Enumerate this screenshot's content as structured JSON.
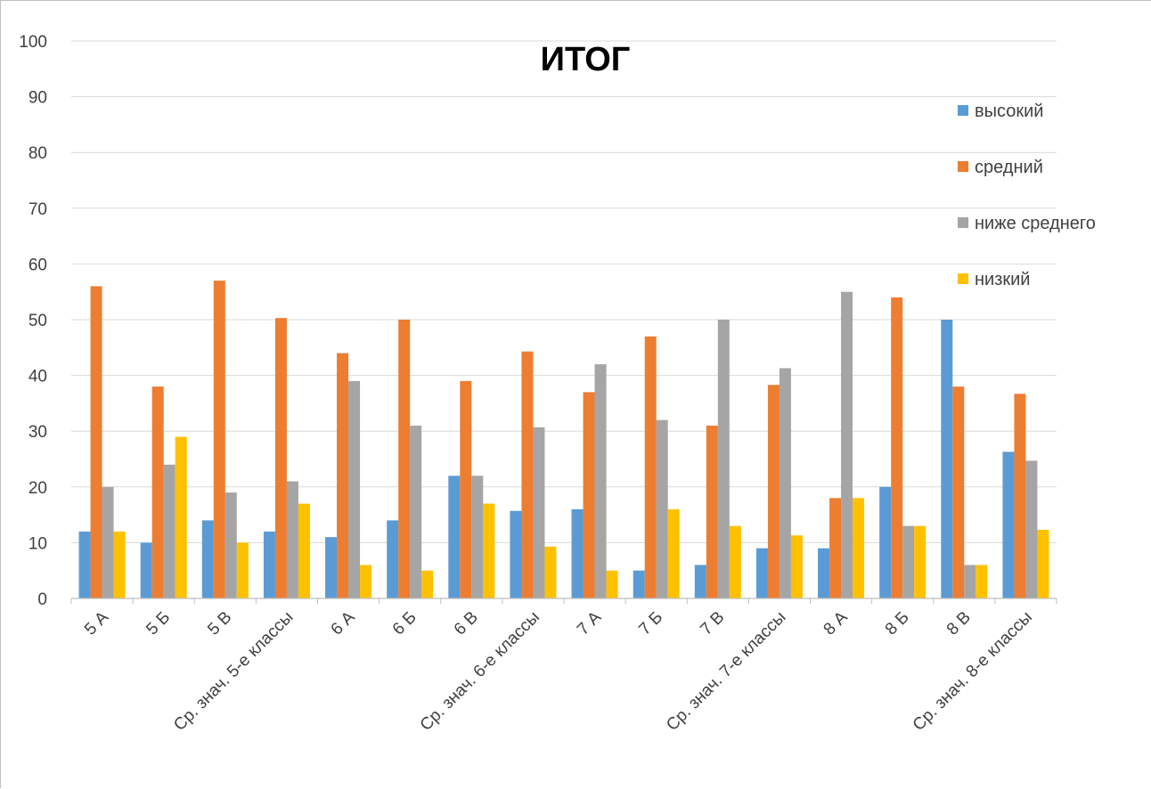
{
  "chart_data": {
    "type": "bar",
    "title": "ИТОГ",
    "xlabel": "",
    "ylabel": "",
    "ylim": [
      0,
      100
    ],
    "yticks": [
      0,
      10,
      20,
      30,
      40,
      50,
      60,
      70,
      80,
      90,
      100
    ],
    "grid": true,
    "legend_position": "right",
    "categories": [
      "5 А",
      "5 Б",
      "5 В",
      "Ср. знач. 5-е классы",
      "6 А",
      "6 Б",
      "6 В",
      "Ср. знач. 6-е классы",
      "7 А",
      "7 Б",
      "7 В",
      "Ср. знач. 7-е классы",
      "8 А",
      "8 Б",
      "8 В",
      "Ср. знач. 8-е классы"
    ],
    "series": [
      {
        "name": "высокий",
        "color": "#5b9bd5",
        "values": [
          12,
          10,
          14,
          12,
          11,
          14,
          22,
          15.7,
          16,
          5,
          6,
          9,
          9,
          20,
          50,
          26.3
        ]
      },
      {
        "name": "средний",
        "color": "#ed7d31",
        "values": [
          56,
          38,
          57,
          50.3,
          44,
          50,
          39,
          44.3,
          37,
          47,
          31,
          38.3,
          18,
          54,
          38,
          36.7
        ]
      },
      {
        "name": "ниже среднего",
        "color": "#a5a5a5",
        "values": [
          20,
          24,
          19,
          21,
          39,
          31,
          22,
          30.7,
          42,
          32,
          50,
          41.3,
          55,
          13,
          6,
          24.7
        ]
      },
      {
        "name": "низкий",
        "color": "#ffc000",
        "values": [
          12,
          29,
          10,
          17,
          6,
          5,
          17,
          9.3,
          5,
          16,
          13,
          11.3,
          18,
          13,
          6,
          12.3
        ]
      }
    ]
  }
}
